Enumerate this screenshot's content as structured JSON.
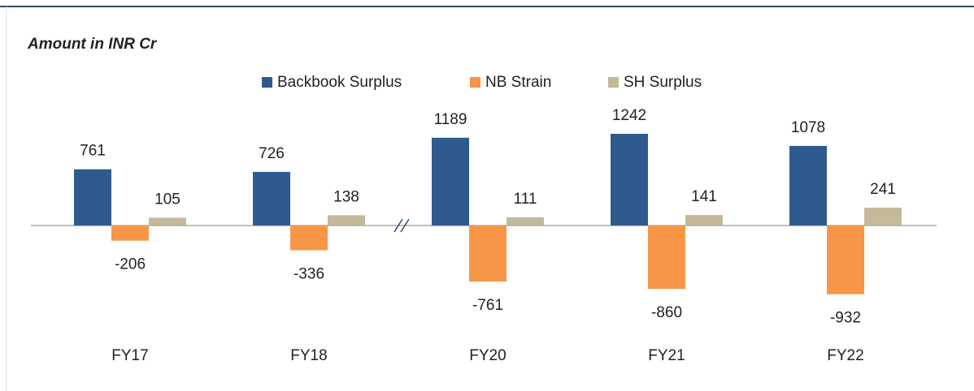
{
  "chart_data": {
    "type": "bar",
    "title": "Amount in INR Cr",
    "categories": [
      "FY17",
      "FY18",
      "FY20",
      "FY21",
      "FY22"
    ],
    "series": [
      {
        "name": "Backbook Surplus",
        "color": "#2e5a8e",
        "values": [
          761,
          726,
          1189,
          1242,
          1078
        ]
      },
      {
        "name": "NB Strain",
        "color": "#f79646",
        "values": [
          -206,
          -336,
          -761,
          -860,
          -932
        ]
      },
      {
        "name": "SH Surplus",
        "color": "#c4b998",
        "values": [
          105,
          138,
          111,
          141,
          241
        ]
      }
    ],
    "ylim": [
      -1100,
      1500
    ],
    "legend": "top"
  }
}
